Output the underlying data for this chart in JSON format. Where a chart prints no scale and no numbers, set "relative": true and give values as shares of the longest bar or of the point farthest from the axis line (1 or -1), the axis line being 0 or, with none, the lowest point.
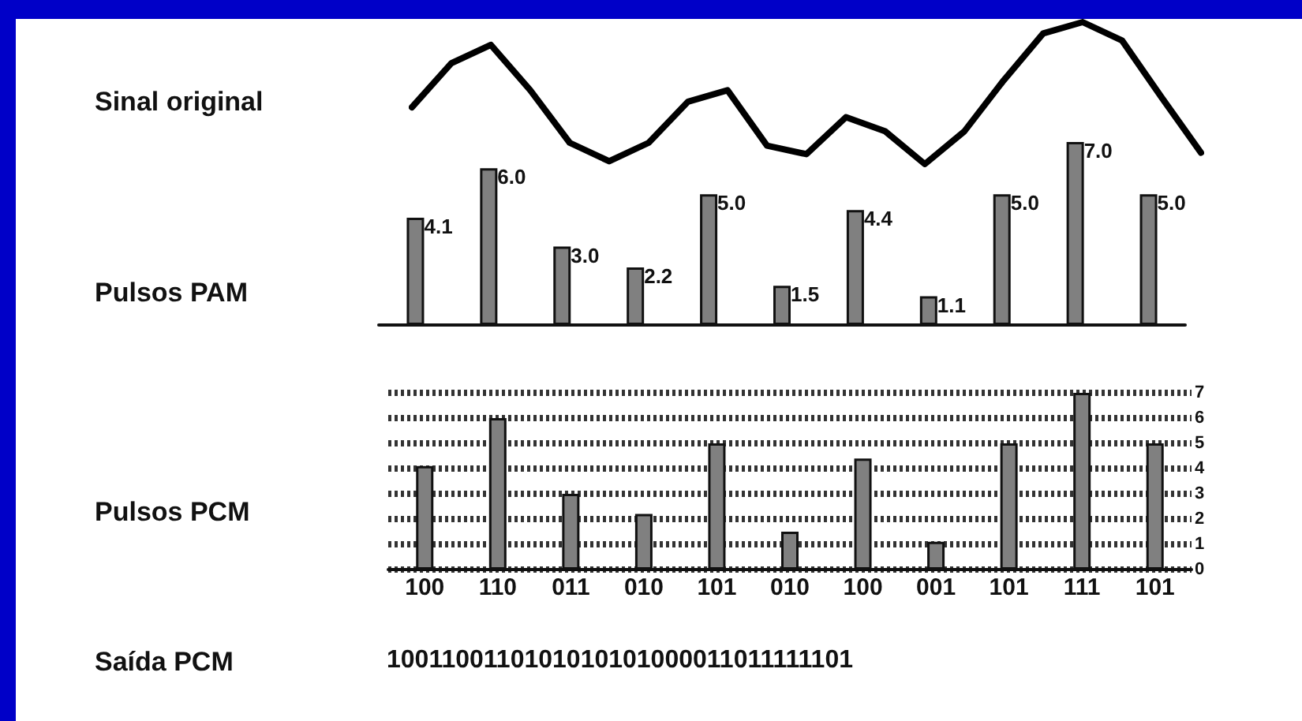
{
  "chart_data": [
    {
      "type": "line",
      "relative": true,
      "marker": "none",
      "categories": [
        null,
        null,
        null,
        null,
        null,
        null,
        null,
        null,
        null,
        null,
        null,
        null,
        null,
        null,
        null,
        null,
        null,
        null,
        null,
        null,
        null
      ],
      "series": [
        {
          "name": "Sinal original",
          "color": "#000000",
          "values": [
            0.4,
            0.71,
            0.84,
            0.52,
            0.15,
            0.02,
            0.15,
            0.44,
            0.52,
            0.13,
            0.07,
            0.33,
            0.23,
            0,
            0.23,
            0.59,
            0.92,
            1,
            0.87,
            0.47,
            0.08
          ]
        }
      ]
    },
    {
      "type": "bar",
      "categories": [
        null,
        null,
        null,
        null,
        null,
        null,
        null,
        null,
        null,
        null,
        null
      ],
      "series": [
        {
          "name": "Pulsos PAM",
          "color": "#808080",
          "values": [
            4.1,
            6.0,
            3.0,
            2.2,
            5.0,
            1.5,
            4.4,
            1.1,
            5.0,
            7.0,
            5.0
          ],
          "value_labels": [
            "4.1",
            "6.0",
            "3.0",
            "2.2",
            "5.0",
            "1.5",
            "4.4",
            "1.1",
            "5.0",
            "7.0",
            "5.0"
          ]
        }
      ]
    },
    {
      "type": "bar",
      "grid": "y",
      "categories": [
        "100",
        "110",
        "011",
        "010",
        "101",
        "010",
        "100",
        "001",
        "101",
        "111",
        "101"
      ],
      "ylim": [
        0,
        7
      ],
      "yticks": [
        0,
        1,
        2,
        3,
        4,
        5,
        6,
        7
      ],
      "series": [
        {
          "name": "Pulsos PCM",
          "color": "#808080",
          "values": [
            4.1,
            6.0,
            3.0,
            2.2,
            5.0,
            1.5,
            4.4,
            1.1,
            5.0,
            7.0,
            5.0
          ]
        }
      ]
    },
    {
      "type": "other",
      "annotations": [
        "Saída PCM",
        "1001100110101010101000011011111101"
      ]
    }
  ]
}
